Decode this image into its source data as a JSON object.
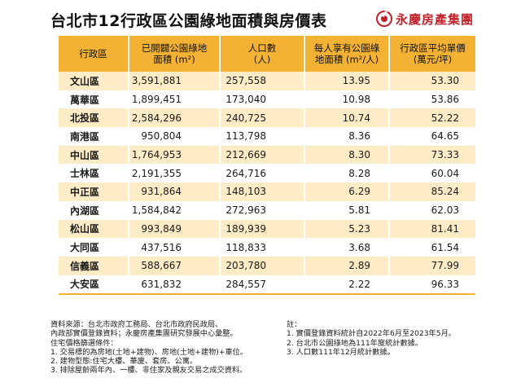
{
  "title": "台北市12行政區公園綠地面積與房價表",
  "brand": {
    "name": "永慶房產集團"
  },
  "table": {
    "headers": [
      [
        "行政區"
      ],
      [
        "已開闢公園綠地",
        "面積 (m²)"
      ],
      [
        "人口數",
        "(人)"
      ],
      [
        "每人享有公園綠",
        "地面積 (m²/人)"
      ],
      [
        "行政區平均單價",
        "(萬元/坪)"
      ]
    ],
    "rows": [
      [
        "文山區",
        "3,591,881",
        "257,558",
        "13.95",
        "53.30"
      ],
      [
        "萬華區",
        "1,899,451",
        "173,040",
        "10.98",
        "53.86"
      ],
      [
        "北投區",
        "2,584,296",
        "240,725",
        "10.74",
        "52.22"
      ],
      [
        "南港區",
        "950,804",
        "113,798",
        "8.36",
        "64.65"
      ],
      [
        "中山區",
        "1,764,953",
        "212,669",
        "8.30",
        "73.33"
      ],
      [
        "士林區",
        "2,191,355",
        "264,716",
        "8.28",
        "60.04"
      ],
      [
        "中正區",
        "931,864",
        "148,103",
        "6.29",
        "85.24"
      ],
      [
        "內湖區",
        "1,584,842",
        "272,963",
        "5.81",
        "62.03"
      ],
      [
        "松山區",
        "993,849",
        "189,939",
        "5.23",
        "81.41"
      ],
      [
        "大同區",
        "437,516",
        "118,833",
        "3.68",
        "61.54"
      ],
      [
        "信義區",
        "588,667",
        "203,780",
        "2.89",
        "77.99"
      ],
      [
        "大安區",
        "631,832",
        "284,557",
        "2.22",
        "96.33"
      ]
    ]
  },
  "notes_left": [
    "資料來源：台北市政府工務局、台北市政府民政局、",
    "內政部實價登錄資料；永慶房產集團研究發展中心彙整。",
    "住宅價格篩選條件：",
    "1. 交易標的為房地(土地+建物)、房地(土地+建物)+車位。",
    "2. 建物型態:住宅大樓、華廈、套房、公寓。",
    "3. 排除屋齡兩年內、一樓、非住家及親友交易之成交資料。"
  ],
  "notes_right": [
    "註：",
    "1. 實價登錄資料統計自2022年6月至2023年5月。",
    "2. 台北市公園綠地為111年度統計數據。",
    "3. 人口數111年12月統計數據。"
  ],
  "colors": {
    "header": "#f3b233",
    "stripe": "#fdecc6",
    "brand": "#c0212b"
  }
}
